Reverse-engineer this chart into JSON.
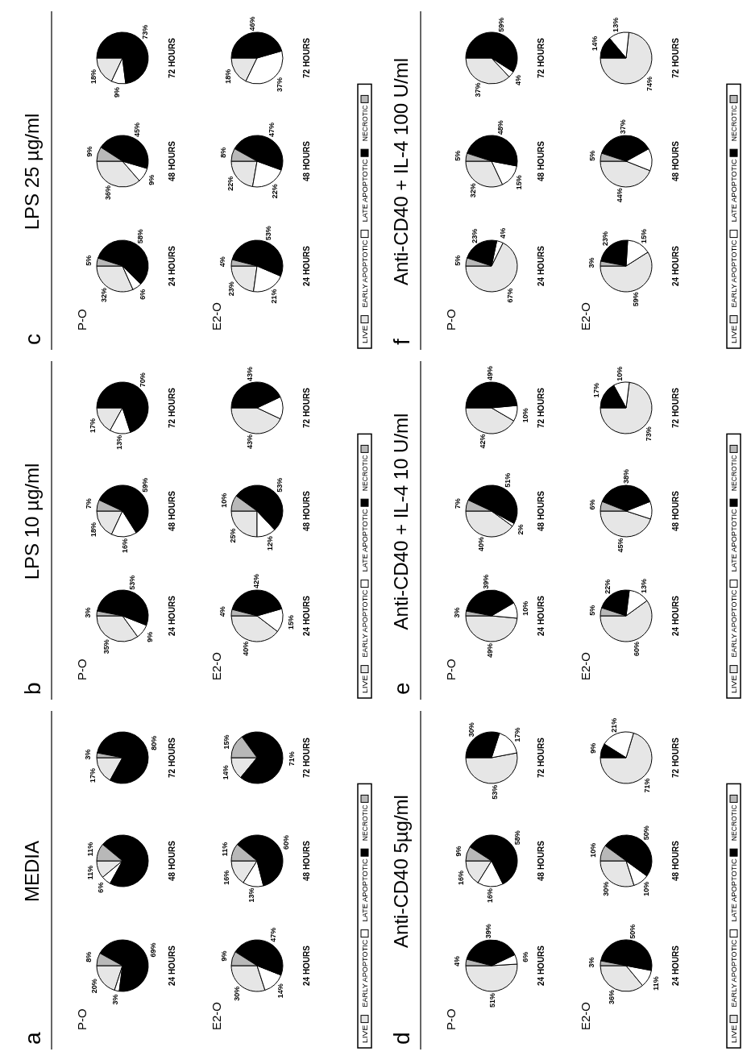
{
  "chart_data": [
    {
      "type": "pie",
      "title": "MEDIA",
      "annotations": [
        "a",
        "P-O",
        "E2-O"
      ],
      "categories": [
        "LIVE",
        "EARLY APOPTOTIC",
        "LATE APOPTOTIC",
        "NECROTIC"
      ],
      "colors": [
        "#e6e6e6",
        "#ffffff",
        "#000000",
        "#b8b8b8"
      ],
      "legend": "bottom",
      "series": [
        {
          "name": "24 HOURS",
          "values": [
            20,
            3,
            69,
            8
          ],
          "value_labels": [
            "20%",
            "3%",
            "69%",
            "8%"
          ]
        },
        {
          "name": "48 HOURS",
          "values": [
            11,
            6,
            72,
            11
          ],
          "value_labels": [
            "11%",
            "6%",
            null,
            "11%"
          ]
        },
        {
          "name": "72 HOURS",
          "values": [
            17,
            0,
            80,
            3
          ],
          "value_labels": [
            "17%",
            null,
            "80%",
            "3%"
          ]
        },
        {
          "name": "24 HOURS",
          "values": [
            30,
            14,
            47,
            9
          ],
          "value_labels": [
            "30%",
            "14%",
            "47%",
            "9%"
          ]
        },
        {
          "name": "48 HOURS",
          "values": [
            16,
            13,
            60,
            11
          ],
          "value_labels": [
            "16%",
            "13%",
            "60%",
            "11%"
          ]
        },
        {
          "name": "72 HOURS",
          "values": [
            14,
            0,
            71,
            15
          ],
          "value_labels": [
            "14%",
            null,
            "71%",
            "15%"
          ]
        }
      ]
    },
    {
      "type": "pie",
      "title": "LPS 10 µg/ml",
      "annotations": [
        "b",
        "P-O",
        "E2-O"
      ],
      "categories": [
        "LIVE",
        "EARLY APOPTOTIC",
        "LATE APOPTOTIC",
        "NECROTIC"
      ],
      "colors": [
        "#e6e6e6",
        "#ffffff",
        "#000000",
        "#b8b8b8"
      ],
      "legend": "bottom",
      "series": [
        {
          "name": "24 HOURS",
          "values": [
            35,
            9,
            53,
            3
          ],
          "value_labels": [
            "35%",
            "9%",
            "53%",
            "3%"
          ]
        },
        {
          "name": "48 HOURS",
          "values": [
            18,
            16,
            59,
            7
          ],
          "value_labels": [
            "18%",
            "16%",
            "59%",
            "7%"
          ]
        },
        {
          "name": "72 HOURS",
          "values": [
            17,
            13,
            70,
            0
          ],
          "value_labels": [
            "17%",
            "13%",
            "70%",
            null
          ]
        },
        {
          "name": "24 HOURS",
          "values": [
            40,
            15,
            42,
            4
          ],
          "value_labels": [
            "40%",
            "15%",
            "42%",
            "4%"
          ]
        },
        {
          "name": "48 HOURS",
          "values": [
            25,
            12,
            53,
            10
          ],
          "value_labels": [
            "25%",
            "12%",
            "53%",
            "10%"
          ]
        },
        {
          "name": "72 HOURS",
          "values": [
            43,
            14,
            43,
            0
          ],
          "value_labels": [
            "43%",
            null,
            "43%",
            null
          ]
        }
      ]
    },
    {
      "type": "pie",
      "title": "LPS 25 µg/ml",
      "annotations": [
        "c",
        "P-O",
        "E2-O"
      ],
      "categories": [
        "LIVE",
        "EARLY APOPTOTIC",
        "LATE APOPTOTIC",
        "NECROTIC"
      ],
      "colors": [
        "#e6e6e6",
        "#ffffff",
        "#000000",
        "#b8b8b8"
      ],
      "legend": "bottom",
      "series": [
        {
          "name": "24 HOURS",
          "values": [
            32,
            6,
            58,
            5
          ],
          "value_labels": [
            "32%",
            "6%",
            "58%",
            "5%"
          ]
        },
        {
          "name": "48 HOURS",
          "values": [
            36,
            9,
            45,
            9
          ],
          "value_labels": [
            "36%",
            "9%",
            "45%",
            "9%"
          ]
        },
        {
          "name": "72 HOURS",
          "values": [
            18,
            9,
            73,
            0
          ],
          "value_labels": [
            "18%",
            "9%",
            "73%",
            null
          ]
        },
        {
          "name": "24 HOURS",
          "values": [
            23,
            21,
            53,
            4
          ],
          "value_labels": [
            "23%",
            "21%",
            "53%",
            "4%"
          ]
        },
        {
          "name": "48 HOURS",
          "values": [
            22,
            22,
            47,
            8
          ],
          "value_labels": [
            "22%",
            "22%",
            "47%",
            "8%"
          ]
        },
        {
          "name": "72 HOURS",
          "values": [
            18,
            37,
            46,
            0
          ],
          "value_labels": [
            "18%",
            "37%",
            "46%",
            null
          ]
        }
      ]
    },
    {
      "type": "pie",
      "title": "Anti-CD40 5µg/ml",
      "annotations": [
        "d",
        "P-O",
        "E2-O"
      ],
      "categories": [
        "LIVE",
        "EARLY APOPTOTIC",
        "LATE APOPTOTIC",
        "NECROTIC"
      ],
      "colors": [
        "#e6e6e6",
        "#ffffff",
        "#000000",
        "#b8b8b8"
      ],
      "legend": "bottom",
      "series": [
        {
          "name": "24 HOURS",
          "values": [
            51,
            6,
            39,
            4
          ],
          "value_labels": [
            "51%",
            "6%",
            "39%",
            "4%"
          ]
        },
        {
          "name": "48 HOURS",
          "values": [
            16,
            16,
            58,
            9
          ],
          "value_labels": [
            "16%",
            "16%",
            "58%",
            "9%"
          ]
        },
        {
          "name": "72 HOURS",
          "values": [
            53,
            17,
            30,
            0
          ],
          "value_labels": [
            "53%",
            "17%",
            "30%",
            null
          ]
        },
        {
          "name": "24 HOURS",
          "values": [
            36,
            11,
            50,
            3
          ],
          "value_labels": [
            "36%",
            "11%",
            "50%",
            "3%"
          ]
        },
        {
          "name": "48 HOURS",
          "values": [
            30,
            10,
            50,
            10
          ],
          "value_labels": [
            "30%",
            "10%",
            "50%",
            "10%"
          ]
        },
        {
          "name": "72 HOURS",
          "values": [
            71,
            21,
            9,
            0
          ],
          "value_labels": [
            "71%",
            "21%",
            "9%",
            null
          ]
        }
      ]
    },
    {
      "type": "pie",
      "title": "Anti-CD40 + IL-4 10 U/ml",
      "annotations": [
        "e",
        "P-O",
        "E2-O"
      ],
      "categories": [
        "LIVE",
        "EARLY APOPTOTIC",
        "LATE APOPTOTIC",
        "NECROTIC"
      ],
      "colors": [
        "#e6e6e6",
        "#ffffff",
        "#000000",
        "#b8b8b8"
      ],
      "legend": "bottom",
      "series": [
        {
          "name": "24 HOURS",
          "values": [
            49,
            10,
            39,
            3
          ],
          "value_labels": [
            "49%",
            "10%",
            "39%",
            "3%"
          ]
        },
        {
          "name": "48 HOURS",
          "values": [
            40,
            2,
            51,
            7
          ],
          "value_labels": [
            "40%",
            "2%",
            "51%",
            "7%"
          ]
        },
        {
          "name": "72 HOURS",
          "values": [
            42,
            10,
            49,
            0
          ],
          "value_labels": [
            "42%",
            "10%",
            "49%",
            null
          ]
        },
        {
          "name": "24 HOURS",
          "values": [
            60,
            13,
            22,
            5
          ],
          "value_labels": [
            "60%",
            "13%",
            "22%",
            "5%"
          ]
        },
        {
          "name": "48 HOURS",
          "values": [
            45,
            11,
            38,
            6
          ],
          "value_labels": [
            "45%",
            null,
            "38%",
            "6%"
          ]
        },
        {
          "name": "72 HOURS",
          "values": [
            73,
            10,
            17,
            0
          ],
          "value_labels": [
            "73%",
            "10%",
            "17%",
            null
          ]
        }
      ]
    },
    {
      "type": "pie",
      "title": "Anti-CD40 + IL-4 100 U/ml",
      "annotations": [
        "f",
        "P-O",
        "E2-O"
      ],
      "categories": [
        "LIVE",
        "EARLY APOPTOTIC",
        "LATE APOPTOTIC",
        "NECROTIC"
      ],
      "colors": [
        "#e6e6e6",
        "#ffffff",
        "#000000",
        "#b8b8b8"
      ],
      "legend": "bottom",
      "series": [
        {
          "name": "24 HOURS",
          "values": [
            67,
            4,
            23,
            5
          ],
          "value_labels": [
            "67%",
            "4%",
            "23%",
            "5%"
          ]
        },
        {
          "name": "48 HOURS",
          "values": [
            32,
            15,
            48,
            5
          ],
          "value_labels": [
            "32%",
            "15%",
            "48%",
            "5%"
          ]
        },
        {
          "name": "72 HOURS",
          "values": [
            37,
            4,
            59,
            0
          ],
          "value_labels": [
            "37%",
            "4%",
            "59%",
            null
          ]
        },
        {
          "name": "24 HOURS",
          "values": [
            59,
            15,
            23,
            3
          ],
          "value_labels": [
            "59%",
            "15%",
            "23%",
            "3%"
          ]
        },
        {
          "name": "48 HOURS",
          "values": [
            44,
            14,
            37,
            5
          ],
          "value_labels": [
            "44%",
            null,
            "37%",
            "5%"
          ]
        },
        {
          "name": "72 HOURS",
          "values": [
            74,
            13,
            14,
            0
          ],
          "value_labels": [
            "74%",
            "13%",
            "14%",
            null
          ]
        }
      ]
    }
  ]
}
